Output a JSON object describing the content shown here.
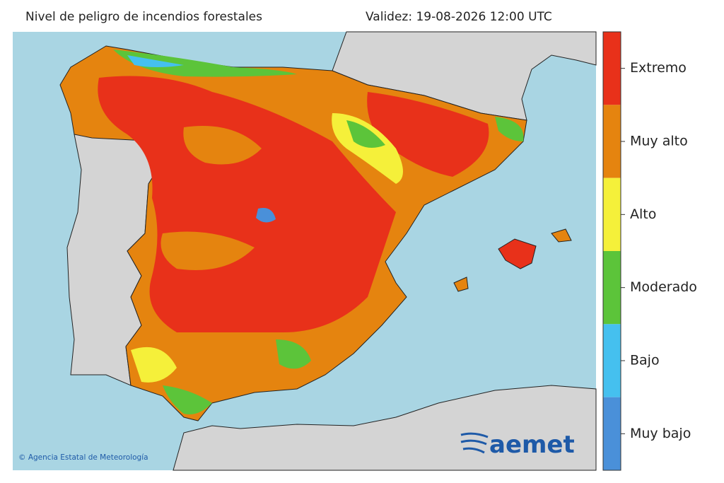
{
  "header": {
    "title": "Nivel de peligro de incendios forestales",
    "validity": "Validez: 19-08-2026 12:00 UTC"
  },
  "legend": {
    "items": [
      {
        "label": "Extremo",
        "color": "#e8311a"
      },
      {
        "label": "Muy alto",
        "color": "#e5840f"
      },
      {
        "label": "Alto",
        "color": "#f5f03a"
      },
      {
        "label": "Moderado",
        "color": "#5cc43a"
      },
      {
        "label": "Bajo",
        "color": "#45c0ef"
      },
      {
        "label": "Muy bajo",
        "color": "#4a90d9"
      }
    ]
  },
  "footer": {
    "copyright": "© Agencia Estatal de Meteorología",
    "logo": "aemet"
  }
}
